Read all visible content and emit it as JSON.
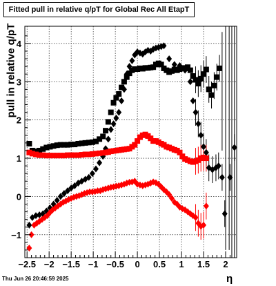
{
  "chart_data": {
    "type": "scatter",
    "title": "Fitted pull in relative q/pT for Global Rec All EtapT",
    "xlabel": "η",
    "ylabel": "pull in relative q/pT",
    "xlim": [
      -2.55,
      2.25
    ],
    "ylim": [
      -1.6,
      4.45
    ],
    "xticks": [
      -2.5,
      -2,
      -1.5,
      -1,
      -0.5,
      0,
      0.5,
      1,
      1.5,
      2
    ],
    "xtick_labels": [
      "−2.5",
      "−2",
      "−1.5",
      "−1",
      "−0.5",
      "0",
      "0.5",
      "1",
      "1.5",
      "2"
    ],
    "yticks": [
      -1,
      0,
      1,
      2,
      3,
      4
    ],
    "ytick_labels": [
      "−1",
      "0",
      "1",
      "2",
      "3",
      "4"
    ],
    "grid": true,
    "series": [
      {
        "marker": "square",
        "color": "#000000",
        "points": [
          [
            -2.45,
            1.38
          ],
          [
            -2.38,
            1.2
          ],
          [
            -2.3,
            1.18
          ],
          [
            -2.22,
            1.2
          ],
          [
            -2.14,
            1.24
          ],
          [
            -2.06,
            1.28
          ],
          [
            -1.98,
            1.3
          ],
          [
            -1.9,
            1.32
          ],
          [
            -1.82,
            1.34
          ],
          [
            -1.74,
            1.35
          ],
          [
            -1.66,
            1.35
          ],
          [
            -1.58,
            1.35
          ],
          [
            -1.5,
            1.36
          ],
          [
            -1.42,
            1.36
          ],
          [
            -1.34,
            1.38
          ],
          [
            -1.26,
            1.39
          ],
          [
            -1.18,
            1.4
          ],
          [
            -1.1,
            1.41
          ],
          [
            -1.02,
            1.42
          ],
          [
            -0.94,
            1.44
          ],
          [
            -0.86,
            1.5
          ],
          [
            -0.78,
            1.57
          ],
          [
            -0.72,
            1.72
          ],
          [
            -0.66,
            1.95
          ],
          [
            -0.6,
            2.2
          ],
          [
            -0.54,
            2.45
          ],
          [
            -0.48,
            2.58
          ],
          [
            -0.42,
            2.68
          ],
          [
            -0.36,
            2.85
          ],
          [
            -0.3,
            3.0
          ],
          [
            -0.24,
            3.12
          ],
          [
            -0.18,
            3.22
          ],
          [
            -0.12,
            3.3
          ],
          [
            -0.06,
            3.33
          ],
          [
            0.0,
            3.33
          ],
          [
            0.06,
            3.35
          ],
          [
            0.12,
            3.34
          ],
          [
            0.18,
            3.36
          ],
          [
            0.24,
            3.36
          ],
          [
            0.3,
            3.37
          ],
          [
            0.36,
            3.38
          ],
          [
            0.42,
            3.45
          ],
          [
            0.48,
            3.48
          ],
          [
            0.54,
            3.45
          ],
          [
            0.6,
            3.35
          ],
          [
            0.66,
            3.3
          ],
          [
            0.72,
            3.25
          ],
          [
            0.78,
            3.28
          ],
          [
            0.84,
            3.32
          ],
          [
            0.9,
            3.3
          ],
          [
            0.96,
            3.33
          ],
          [
            1.02,
            3.36
          ],
          [
            1.08,
            3.35
          ],
          [
            1.14,
            3.38
          ],
          [
            1.2,
            3.3
          ],
          [
            1.26,
            3.15
          ],
          [
            1.32,
            3.05
          ],
          [
            1.38,
            2.95
          ],
          [
            1.44,
            3.08
          ],
          [
            1.5,
            3.2
          ],
          [
            1.56,
            3.32
          ],
          [
            1.62,
            2.8
          ],
          [
            1.68,
            2.65
          ],
          [
            1.74,
            2.9
          ],
          [
            1.8,
            3.12
          ],
          [
            1.86,
            3.35
          ]
        ]
      },
      {
        "marker": "diamond",
        "color": "#000000",
        "points": [
          [
            -2.45,
            -0.75
          ],
          [
            -2.38,
            -0.55
          ],
          [
            -2.3,
            -0.5
          ],
          [
            -2.22,
            -0.48
          ],
          [
            -2.14,
            -0.45
          ],
          [
            -2.06,
            -0.38
          ],
          [
            -1.98,
            -0.3
          ],
          [
            -1.9,
            -0.2
          ],
          [
            -1.82,
            -0.1
          ],
          [
            -1.74,
            0.0
          ],
          [
            -1.66,
            0.08
          ],
          [
            -1.58,
            0.15
          ],
          [
            -1.5,
            0.22
          ],
          [
            -1.42,
            0.28
          ],
          [
            -1.34,
            0.35
          ],
          [
            -1.26,
            0.4
          ],
          [
            -1.18,
            0.45
          ],
          [
            -1.1,
            0.5
          ],
          [
            -1.02,
            0.6
          ],
          [
            -0.94,
            0.72
          ],
          [
            -0.86,
            0.88
          ],
          [
            -0.78,
            1.05
          ],
          [
            -0.72,
            1.25
          ],
          [
            -0.66,
            1.5
          ],
          [
            -0.6,
            1.75
          ],
          [
            -0.54,
            1.9
          ],
          [
            -0.48,
            2.05
          ],
          [
            -0.42,
            2.2
          ],
          [
            -0.36,
            2.5
          ],
          [
            -0.3,
            2.8
          ],
          [
            -0.24,
            3.2
          ],
          [
            -0.18,
            3.4
          ],
          [
            -0.12,
            3.55
          ],
          [
            -0.06,
            3.7
          ],
          [
            0.0,
            3.78
          ],
          [
            0.06,
            3.75
          ],
          [
            0.12,
            3.72
          ],
          [
            0.18,
            3.78
          ],
          [
            0.24,
            3.82
          ],
          [
            0.3,
            3.8
          ],
          [
            0.36,
            3.85
          ],
          [
            0.42,
            3.88
          ],
          [
            0.48,
            3.9
          ],
          [
            0.54,
            3.92
          ],
          [
            0.6,
            3.94
          ],
          [
            0.72,
            3.6
          ],
          [
            0.84,
            3.45
          ],
          [
            0.96,
            3.42
          ],
          [
            1.08,
            3.3
          ],
          [
            1.2,
            3.0
          ],
          [
            1.26,
            2.5
          ],
          [
            1.32,
            2.2
          ],
          [
            1.38,
            1.9
          ],
          [
            1.44,
            1.6
          ],
          [
            1.5,
            1.3
          ],
          [
            1.56,
            1.15
          ],
          [
            1.62,
            0.75
          ],
          [
            1.7,
            0.7
          ],
          [
            1.78,
            0.75
          ],
          [
            1.84,
            0.8
          ],
          [
            1.92,
            0.5
          ],
          [
            1.98,
            -0.45
          ],
          [
            2.1,
            0.5
          ],
          [
            2.2,
            1.28
          ]
        ]
      },
      {
        "marker": "square",
        "color": "#ff0000",
        "points": [
          [
            -2.45,
            1.15
          ],
          [
            -2.38,
            1.12
          ],
          [
            -2.3,
            1.1
          ],
          [
            -2.22,
            1.08
          ],
          [
            -2.14,
            1.08
          ],
          [
            -2.06,
            1.07
          ],
          [
            -1.98,
            1.07
          ],
          [
            -1.9,
            1.07
          ],
          [
            -1.82,
            1.07
          ],
          [
            -1.74,
            1.07
          ],
          [
            -1.66,
            1.07
          ],
          [
            -1.58,
            1.08
          ],
          [
            -1.5,
            1.08
          ],
          [
            -1.42,
            1.08
          ],
          [
            -1.34,
            1.08
          ],
          [
            -1.26,
            1.09
          ],
          [
            -1.18,
            1.1
          ],
          [
            -1.1,
            1.1
          ],
          [
            -1.02,
            1.11
          ],
          [
            -0.94,
            1.12
          ],
          [
            -0.86,
            1.13
          ],
          [
            -0.78,
            1.14
          ],
          [
            -0.72,
            1.15
          ],
          [
            -0.66,
            1.16
          ],
          [
            -0.6,
            1.18
          ],
          [
            -0.54,
            1.19
          ],
          [
            -0.48,
            1.2
          ],
          [
            -0.42,
            1.21
          ],
          [
            -0.36,
            1.22
          ],
          [
            -0.3,
            1.23
          ],
          [
            -0.24,
            1.24
          ],
          [
            -0.18,
            1.25
          ],
          [
            -0.12,
            1.3
          ],
          [
            -0.06,
            1.35
          ],
          [
            0.0,
            1.45
          ],
          [
            0.06,
            1.55
          ],
          [
            0.12,
            1.6
          ],
          [
            0.18,
            1.62
          ],
          [
            0.24,
            1.58
          ],
          [
            0.3,
            1.52
          ],
          [
            0.36,
            1.45
          ],
          [
            0.42,
            1.45
          ],
          [
            0.48,
            1.42
          ],
          [
            0.54,
            1.38
          ],
          [
            0.6,
            1.35
          ],
          [
            0.66,
            1.3
          ],
          [
            0.72,
            1.28
          ],
          [
            0.78,
            1.25
          ],
          [
            0.84,
            1.22
          ],
          [
            0.9,
            1.2
          ],
          [
            0.96,
            1.15
          ],
          [
            1.02,
            1.05
          ],
          [
            1.08,
            0.98
          ],
          [
            1.14,
            0.95
          ],
          [
            1.2,
            0.92
          ],
          [
            1.26,
            0.9
          ],
          [
            1.32,
            0.92
          ],
          [
            1.38,
            0.95
          ],
          [
            1.44,
            1.0
          ],
          [
            1.5,
            1.02
          ],
          [
            1.56,
            1.0
          ]
        ]
      },
      {
        "marker": "diamond",
        "color": "#ff0000",
        "points": [
          [
            -2.45,
            -1.35
          ],
          [
            -2.4,
            -1.0
          ],
          [
            -2.34,
            -0.75
          ],
          [
            -2.28,
            -0.7
          ],
          [
            -2.22,
            -0.65
          ],
          [
            -2.16,
            -0.6
          ],
          [
            -2.1,
            -0.55
          ],
          [
            -2.04,
            -0.5
          ],
          [
            -1.98,
            -0.42
          ],
          [
            -1.92,
            -0.35
          ],
          [
            -1.86,
            -0.3
          ],
          [
            -1.8,
            -0.25
          ],
          [
            -1.74,
            -0.2
          ],
          [
            -1.68,
            -0.15
          ],
          [
            -1.62,
            -0.12
          ],
          [
            -1.56,
            -0.08
          ],
          [
            -1.5,
            -0.05
          ],
          [
            -1.44,
            -0.02
          ],
          [
            -1.38,
            0.0
          ],
          [
            -1.32,
            0.02
          ],
          [
            -1.26,
            0.05
          ],
          [
            -1.2,
            0.08
          ],
          [
            -1.14,
            0.1
          ],
          [
            -1.08,
            0.12
          ],
          [
            -1.02,
            0.12
          ],
          [
            -0.96,
            0.13
          ],
          [
            -0.9,
            0.15
          ],
          [
            -0.84,
            0.15
          ],
          [
            -0.78,
            0.18
          ],
          [
            -0.72,
            0.2
          ],
          [
            -0.66,
            0.22
          ],
          [
            -0.6,
            0.24
          ],
          [
            -0.54,
            0.25
          ],
          [
            -0.48,
            0.27
          ],
          [
            -0.42,
            0.28
          ],
          [
            -0.36,
            0.3
          ],
          [
            -0.3,
            0.32
          ],
          [
            -0.24,
            0.35
          ],
          [
            -0.18,
            0.37
          ],
          [
            -0.12,
            0.38
          ],
          [
            -0.06,
            0.4
          ],
          [
            0.0,
            0.32
          ],
          [
            0.06,
            0.3
          ],
          [
            0.12,
            0.28
          ],
          [
            0.18,
            0.3
          ],
          [
            0.24,
            0.32
          ],
          [
            0.3,
            0.35
          ],
          [
            0.36,
            0.38
          ],
          [
            0.42,
            0.36
          ],
          [
            0.48,
            0.32
          ],
          [
            0.54,
            0.25
          ],
          [
            0.6,
            0.18
          ],
          [
            0.66,
            0.12
          ],
          [
            0.72,
            0.05
          ],
          [
            0.78,
            -0.05
          ],
          [
            0.84,
            -0.15
          ],
          [
            0.9,
            -0.2
          ],
          [
            0.96,
            -0.28
          ],
          [
            1.02,
            -0.32
          ],
          [
            1.08,
            -0.35
          ],
          [
            1.14,
            -0.4
          ],
          [
            1.2,
            -0.45
          ],
          [
            1.26,
            -0.5
          ],
          [
            1.32,
            -0.55
          ],
          [
            1.38,
            -0.7
          ],
          [
            1.44,
            -0.78
          ],
          [
            1.5,
            -0.75
          ],
          [
            1.56,
            -0.25
          ]
        ]
      }
    ]
  },
  "timestamp": "Thu Jun 26 20:46:59 2025"
}
